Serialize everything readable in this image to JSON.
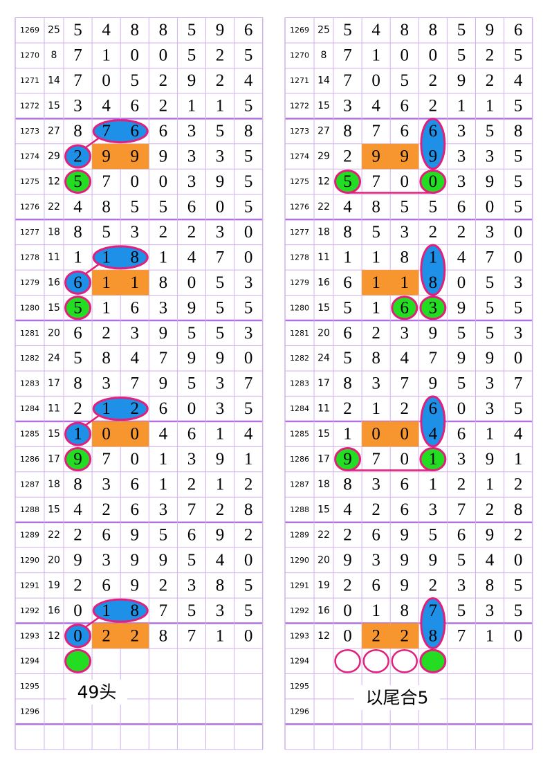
{
  "table": {
    "rows": [
      {
        "id": 1269,
        "sum": 25,
        "digits": [
          5,
          4,
          8,
          8,
          5,
          9,
          6
        ]
      },
      {
        "id": 1270,
        "sum": 8,
        "digits": [
          7,
          1,
          0,
          0,
          5,
          2,
          5
        ]
      },
      {
        "id": 1271,
        "sum": 14,
        "digits": [
          7,
          0,
          5,
          2,
          9,
          2,
          4
        ]
      },
      {
        "id": 1272,
        "sum": 15,
        "digits": [
          3,
          4,
          6,
          2,
          1,
          1,
          5
        ]
      },
      {
        "id": 1273,
        "sum": 27,
        "digits": [
          8,
          7,
          6,
          6,
          3,
          5,
          8
        ]
      },
      {
        "id": 1274,
        "sum": 29,
        "digits": [
          2,
          9,
          9,
          9,
          3,
          3,
          5
        ]
      },
      {
        "id": 1275,
        "sum": 12,
        "digits": [
          5,
          7,
          0,
          0,
          3,
          9,
          5
        ]
      },
      {
        "id": 1276,
        "sum": 22,
        "digits": [
          4,
          8,
          5,
          5,
          6,
          0,
          5
        ]
      },
      {
        "id": 1277,
        "sum": 18,
        "digits": [
          8,
          5,
          3,
          2,
          2,
          3,
          0
        ]
      },
      {
        "id": 1278,
        "sum": 11,
        "digits": [
          1,
          1,
          8,
          1,
          4,
          7,
          0
        ]
      },
      {
        "id": 1279,
        "sum": 16,
        "digits": [
          6,
          1,
          1,
          8,
          0,
          5,
          3
        ]
      },
      {
        "id": 1280,
        "sum": 15,
        "digits": [
          5,
          1,
          6,
          3,
          9,
          5,
          5
        ]
      },
      {
        "id": 1281,
        "sum": 20,
        "digits": [
          6,
          2,
          3,
          9,
          5,
          5,
          3
        ]
      },
      {
        "id": 1282,
        "sum": 24,
        "digits": [
          5,
          8,
          4,
          7,
          9,
          9,
          0
        ]
      },
      {
        "id": 1283,
        "sum": 17,
        "digits": [
          8,
          3,
          7,
          9,
          5,
          3,
          7
        ]
      },
      {
        "id": 1284,
        "sum": 11,
        "digits": [
          2,
          1,
          2,
          6,
          0,
          3,
          5
        ]
      },
      {
        "id": 1285,
        "sum": 15,
        "digits": [
          1,
          0,
          0,
          4,
          6,
          1,
          4
        ]
      },
      {
        "id": 1286,
        "sum": 17,
        "digits": [
          9,
          7,
          0,
          1,
          3,
          9,
          1
        ]
      },
      {
        "id": 1287,
        "sum": 18,
        "digits": [
          8,
          3,
          6,
          1,
          2,
          1,
          2
        ]
      },
      {
        "id": 1288,
        "sum": 15,
        "digits": [
          4,
          2,
          6,
          3,
          7,
          2,
          8
        ]
      },
      {
        "id": 1289,
        "sum": 22,
        "digits": [
          2,
          6,
          9,
          5,
          6,
          9,
          2
        ]
      },
      {
        "id": 1290,
        "sum": 20,
        "digits": [
          9,
          3,
          9,
          9,
          5,
          4,
          0
        ]
      },
      {
        "id": 1291,
        "sum": 19,
        "digits": [
          2,
          6,
          9,
          2,
          3,
          8,
          5
        ]
      },
      {
        "id": 1292,
        "sum": 16,
        "digits": [
          0,
          1,
          8,
          7,
          5,
          3,
          5
        ]
      },
      {
        "id": 1293,
        "sum": 12,
        "digits": [
          0,
          2,
          2,
          8,
          7,
          1,
          0
        ]
      },
      {
        "id": 1294
      },
      {
        "id": 1295
      },
      {
        "id": 1296
      }
    ]
  },
  "annotations": {
    "left": "49头",
    "right": "以尾合5"
  }
}
